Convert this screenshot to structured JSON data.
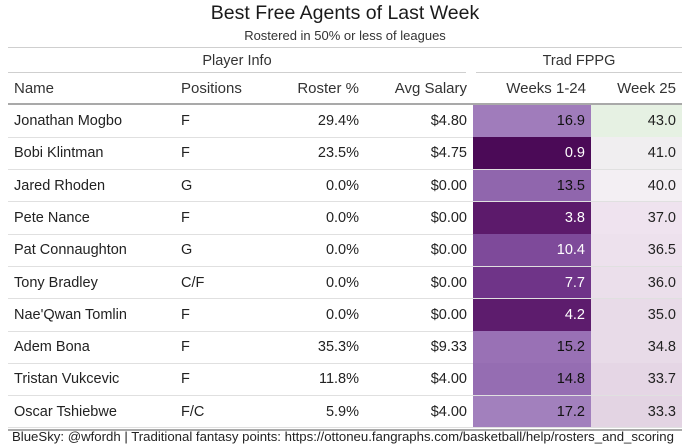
{
  "title": "Best Free Agents of Last Week",
  "subtitle": "Rostered in 50% or less of leagues",
  "spanners": {
    "player_info": "Player Info",
    "trad_fppg": "Trad FPPG"
  },
  "columns": [
    "Name",
    "Positions",
    "Roster %",
    "Avg Salary",
    "Weeks 1-24",
    "Week 25"
  ],
  "rows": [
    {
      "name": "Jonathan Mogbo",
      "positions": "F",
      "roster": "29.4%",
      "salary": "$4.80",
      "weeks": "16.9",
      "week25": "43.0",
      "weeks_color": "#a07cbb",
      "weeks_text": "#111111",
      "week25_color": "#e6f1e3"
    },
    {
      "name": "Bobi Klintman",
      "positions": "F",
      "roster": "23.5%",
      "salary": "$4.75",
      "weeks": "0.9",
      "week25": "41.0",
      "weeks_color": "#4b0a57",
      "weeks_text": "#ffffff",
      "week25_color": "#f0eef0"
    },
    {
      "name": "Jared Rhoden",
      "positions": "G",
      "roster": "0.0%",
      "salary": "$0.00",
      "weeks": "13.5",
      "week25": "40.0",
      "weeks_color": "#9066ad",
      "weeks_text": "#111111",
      "week25_color": "#f3eff3"
    },
    {
      "name": "Pete Nance",
      "positions": "F",
      "roster": "0.0%",
      "salary": "$0.00",
      "weeks": "3.8",
      "week25": "37.0",
      "weeks_color": "#5c1a6b",
      "weeks_text": "#ffffff",
      "week25_color": "#efe3ef"
    },
    {
      "name": "Pat Connaughton",
      "positions": "G",
      "roster": "0.0%",
      "salary": "$0.00",
      "weeks": "10.4",
      "week25": "36.5",
      "weeks_color": "#7e4a9a",
      "weeks_text": "#ffffff",
      "week25_color": "#ede1ed"
    },
    {
      "name": "Tony Bradley",
      "positions": "C/F",
      "roster": "0.0%",
      "salary": "$0.00",
      "weeks": "7.7",
      "week25": "36.0",
      "weeks_color": "#6f3488",
      "weeks_text": "#ffffff",
      "week25_color": "#ebdfeb"
    },
    {
      "name": "Nae'Qwan Tomlin",
      "positions": "F",
      "roster": "0.0%",
      "salary": "$0.00",
      "weeks": "4.2",
      "week25": "35.0",
      "weeks_color": "#5d1c6d",
      "weeks_text": "#ffffff",
      "week25_color": "#e8dbe8"
    },
    {
      "name": "Adem Bona",
      "positions": "F",
      "roster": "35.3%",
      "salary": "$9.33",
      "weeks": "15.2",
      "week25": "34.8",
      "weeks_color": "#9971b5",
      "weeks_text": "#111111",
      "week25_color": "#e8dbe8"
    },
    {
      "name": "Tristan Vukcevic",
      "positions": "F",
      "roster": "11.8%",
      "salary": "$4.00",
      "weeks": "14.8",
      "week25": "33.7",
      "weeks_color": "#956db2",
      "weeks_text": "#111111",
      "week25_color": "#e5d6e5"
    },
    {
      "name": "Oscar Tshiebwe",
      "positions": "F/C",
      "roster": "5.9%",
      "salary": "$4.00",
      "weeks": "17.2",
      "week25": "33.3",
      "weeks_color": "#a280bd",
      "weeks_text": "#111111",
      "week25_color": "#e3d4e3"
    }
  ],
  "footer": "BlueSky: @wfordh | Traditional fantasy points: https://ottoneu.fangraphs.com/basketball/help/rosters_and_scoring"
}
